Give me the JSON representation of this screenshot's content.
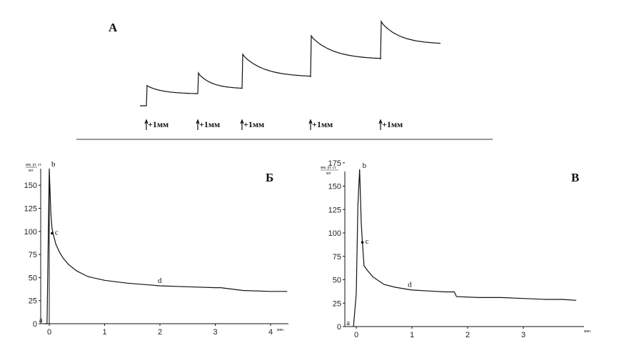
{
  "panel_a": {
    "label": "А",
    "marker_label": "+1мм"
  },
  "panel_b": {
    "label": "Б",
    "unit_top": "мм. рт. ст.",
    "unit_bottom": "мл",
    "x_unit": "мин.",
    "point_labels": [
      "a",
      "b",
      "c",
      "d"
    ]
  },
  "panel_c": {
    "label": "В",
    "unit_top": "мм. рт. ст.",
    "unit_bottom": "мл",
    "x_unit": "мин.",
    "point_labels": [
      "a",
      "b",
      "c",
      "d"
    ]
  },
  "chart_data": [
    {
      "type": "line",
      "panel": "А",
      "markers": [
        "+1мм",
        "+1мм",
        "+1мм",
        "+1мм",
        "+1мм"
      ],
      "series": [
        {
          "step_baselines": [
            0.0,
            0.07,
            0.2,
            0.34,
            0.55
          ],
          "step_peaks": [
            0.24,
            0.39,
            0.61,
            0.83,
            1.0
          ],
          "step_ends": [
            0.14,
            0.2,
            0.34,
            0.55,
            0.73
          ]
        }
      ]
    },
    {
      "type": "line",
      "panel": "Б",
      "xlabel": "мин.",
      "ylabel": "мм. рт. ст. / мл",
      "xlim": [
        -0.15,
        4.3
      ],
      "ylim": [
        0,
        170
      ],
      "xticks": [
        0,
        1,
        2,
        3,
        4
      ],
      "yticks": [
        0,
        25,
        50,
        75,
        100,
        125,
        150
      ],
      "series": [
        {
          "x": [
            -0.08,
            -0.04,
            0.0,
            0.01,
            0.03,
            0.05,
            0.08,
            0.12,
            0.18,
            0.25,
            0.35,
            0.5,
            0.7,
            1.0,
            1.4,
            1.8,
            2.0,
            2.5,
            3.0,
            3.1,
            3.5,
            4.0,
            4.3
          ],
          "y": [
            0,
            0,
            168,
            150,
            118,
            103,
            95,
            86,
            78,
            71,
            64,
            57,
            51,
            47,
            44,
            42,
            41,
            40,
            39,
            39,
            36,
            35,
            35
          ]
        }
      ],
      "annotations": [
        {
          "label": "a",
          "x": -0.08,
          "y": 0
        },
        {
          "label": "b",
          "x": 0.0,
          "y": 168
        },
        {
          "label": "c",
          "x": 0.05,
          "y": 98
        },
        {
          "label": "d",
          "x": 2.0,
          "y": 41
        }
      ]
    },
    {
      "type": "line",
      "panel": "В",
      "xlabel": "мин.",
      "ylabel": "мм. рт. ст. / мл",
      "xlim": [
        -0.15,
        4.1
      ],
      "ylim": [
        0,
        178
      ],
      "xticks": [
        0,
        1,
        2,
        3
      ],
      "yticks": [
        0,
        25,
        50,
        75,
        100,
        125,
        150,
        175
      ],
      "series": [
        {
          "x": [
            -0.05,
            0.0,
            0.03,
            0.06,
            0.09,
            0.11,
            0.14,
            0.2,
            0.3,
            0.5,
            0.7,
            0.9,
            1.0,
            1.3,
            1.6,
            1.76,
            1.8,
            2.2,
            2.6,
            3.0,
            3.4,
            3.7,
            3.95
          ],
          "y": [
            0,
            35,
            130,
            168,
            110,
            90,
            65,
            60,
            53,
            45,
            42,
            40,
            39,
            38,
            37,
            37,
            32,
            31,
            31,
            30,
            29,
            29,
            28
          ]
        }
      ],
      "annotations": [
        {
          "label": "a",
          "x": -0.05,
          "y": 0
        },
        {
          "label": "b",
          "x": 0.06,
          "y": 168
        },
        {
          "label": "c",
          "x": 0.11,
          "y": 90
        },
        {
          "label": "d",
          "x": 0.95,
          "y": 40
        }
      ]
    }
  ]
}
